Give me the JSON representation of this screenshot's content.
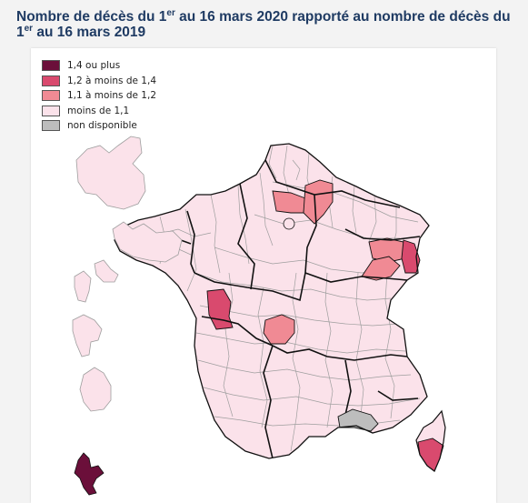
{
  "title": {
    "part1": "Nombre de décès du 1",
    "sup1": "er",
    "part2": " au 16 mars 2020 rapporté au nombre de décès du 1",
    "sup2": "er",
    "part3": " au 16 mars 2019"
  },
  "legend": [
    {
      "label": "1,4 ou plus",
      "color": "#6b0f3a"
    },
    {
      "label": "1,2 à moins de 1,4",
      "color": "#d94a6e"
    },
    {
      "label": "1,1 à moins de 1,2",
      "color": "#f08a94"
    },
    {
      "label": "moins de 1,1",
      "color": "#fbe2ea"
    },
    {
      "label": "non disponible",
      "color": "#bdbdbd"
    }
  ],
  "colors": {
    "border_region": "#111111",
    "border_department": "#9e9e9e"
  }
}
